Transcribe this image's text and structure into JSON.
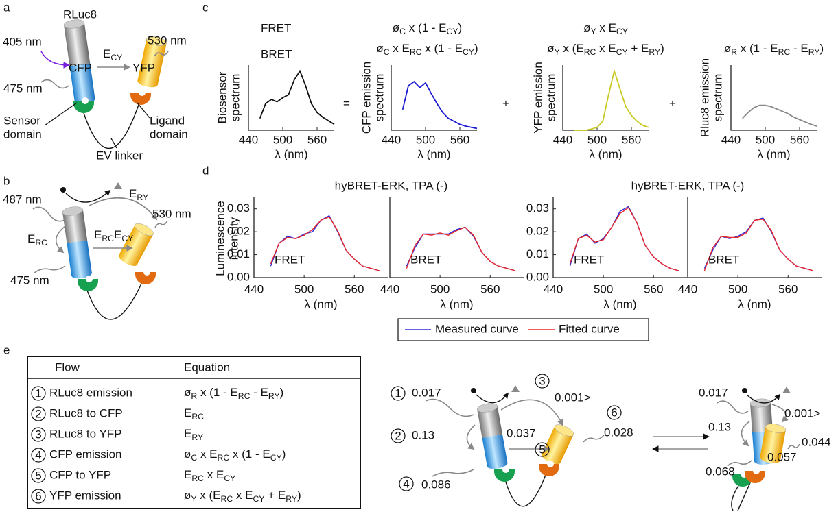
{
  "panels": [
    "a",
    "b",
    "c",
    "d",
    "e"
  ],
  "a": {
    "rluc8": "RLuc8",
    "cfp": "CFP",
    "yfp": "YFP",
    "excitation": "405 nm",
    "cfp_emission": "475 nm",
    "yfp_emission": "530 nm",
    "e_cy": [
      "E",
      "CY"
    ],
    "sensor": [
      "Sensor",
      "domain"
    ],
    "ligand": [
      "Ligand",
      "domain"
    ],
    "linker": "EV linker"
  },
  "b": {
    "rluc8_emission": "487 nm",
    "cfp_emission": "475 nm",
    "yfp_emission": "530 nm",
    "e_ry": [
      "E",
      "RY"
    ],
    "e_rc": [
      "E",
      "RC"
    ],
    "e_rc_cy": [
      "E",
      "RC",
      "E",
      "CY"
    ]
  },
  "c": {
    "fret": "FRET",
    "bret": "BRET",
    "equals": "=",
    "plus": "+",
    "xlabel": "λ (nm)",
    "xlim": [
      440,
      590
    ],
    "ylim": [
      0,
      1.1
    ],
    "xticks": [
      440,
      500,
      560
    ],
    "x": [
      460,
      470,
      480,
      490,
      500,
      510,
      520,
      530,
      540,
      550,
      560,
      570,
      580,
      590
    ],
    "plots": [
      {
        "ylabel": [
          "Biosensor",
          "spectrum"
        ],
        "color": "#111111",
        "values": [
          0.2,
          0.45,
          0.52,
          0.48,
          0.55,
          0.6,
          0.85,
          1.0,
          0.75,
          0.45,
          0.3,
          0.22,
          0.16,
          0.1
        ]
      },
      {
        "ylabel": [
          "CFP emission",
          "spectrum"
        ],
        "color": "#1a1ad0",
        "fret_equation": [
          "ø",
          "C",
          " x  (1 - E",
          "CY",
          ")"
        ],
        "bret_equation": [
          "ø",
          "C",
          " x E",
          "RC",
          " x (1 - E",
          "CY",
          ")"
        ],
        "values": [
          0.35,
          0.75,
          0.82,
          0.72,
          0.8,
          0.62,
          0.45,
          0.3,
          0.2,
          0.15,
          0.1,
          0.07,
          0.05,
          0.03
        ]
      },
      {
        "ylabel": [
          "YFP emission",
          "spectrum"
        ],
        "color": "#c8c820",
        "fret_equation": [
          "ø",
          "Y",
          " x E",
          "CY"
        ],
        "bret_equation": [
          "ø",
          "Y",
          " x (E",
          "RC",
          " x E",
          "CY",
          " + E",
          "RY",
          ")"
        ],
        "values": [
          0,
          0,
          0,
          0.02,
          0.05,
          0.15,
          0.6,
          1.0,
          0.7,
          0.4,
          0.25,
          0.15,
          0.08,
          0.05
        ]
      },
      {
        "ylabel": [
          "Rluc8 emission",
          "spectrum"
        ],
        "color": "#888888",
        "bret_equation": [
          "ø",
          "R",
          " x (1 - E",
          "RC",
          " - E",
          "RY",
          ")"
        ],
        "values": [
          0.2,
          0.3,
          0.38,
          0.42,
          0.42,
          0.4,
          0.36,
          0.32,
          0.28,
          0.22,
          0.18,
          0.14,
          0.1,
          0.07
        ]
      }
    ]
  },
  "d": {
    "titles": [
      "hyBRET-ERK, TPA (-)",
      "hyBRET-ERK, TPA (-)"
    ],
    "ylabel": [
      "Luminescence",
      "intensity"
    ],
    "xlabel": "λ (nm)",
    "xlim": [
      440,
      600
    ],
    "ylim": [
      0,
      0.035
    ],
    "xticks": [
      440,
      500,
      560
    ],
    "yticks": [
      {
        "value": 0,
        "label": "0.00"
      },
      {
        "value": 0.01,
        "label": "0.01"
      },
      {
        "value": 0.02,
        "label": "0.02"
      },
      {
        "value": 0.03,
        "label": "0.03"
      }
    ],
    "x": [
      460,
      470,
      480,
      490,
      500,
      510,
      520,
      530,
      540,
      550,
      560,
      570,
      580,
      590
    ],
    "legend": [
      {
        "name": "Measured curve",
        "color": "#2b2bd6"
      },
      {
        "name": "Fitted curve",
        "color": "#e8262b"
      }
    ],
    "plots": [
      {
        "label": "FRET",
        "series": [
          [
            0.005,
            0.015,
            0.018,
            0.017,
            0.019,
            0.02,
            0.025,
            0.027,
            0.02,
            0.012,
            0.008,
            0.005,
            0.004,
            0.003
          ],
          [
            0.006,
            0.015,
            0.0175,
            0.017,
            0.0185,
            0.021,
            0.025,
            0.0265,
            0.0205,
            0.012,
            0.008,
            0.005,
            0.004,
            0.003
          ]
        ]
      },
      {
        "label": "BRET",
        "series": [
          [
            0.005,
            0.013,
            0.019,
            0.019,
            0.019,
            0.019,
            0.021,
            0.022,
            0.018,
            0.011,
            0.007,
            0.005,
            0.004,
            0.003
          ],
          [
            0.004,
            0.014,
            0.019,
            0.0185,
            0.0195,
            0.0185,
            0.0205,
            0.022,
            0.0185,
            0.011,
            0.007,
            0.005,
            0.004,
            0.003
          ]
        ]
      },
      {
        "label": "FRET",
        "series": [
          [
            0.005,
            0.017,
            0.019,
            0.015,
            0.017,
            0.022,
            0.029,
            0.031,
            0.024,
            0.014,
            0.009,
            0.006,
            0.004,
            0.003
          ],
          [
            0.006,
            0.017,
            0.0185,
            0.0155,
            0.0165,
            0.022,
            0.028,
            0.0305,
            0.024,
            0.014,
            0.009,
            0.006,
            0.004,
            0.003
          ]
        ]
      },
      {
        "label": "BRET",
        "series": [
          [
            0.004,
            0.012,
            0.018,
            0.017,
            0.018,
            0.02,
            0.025,
            0.026,
            0.02,
            0.012,
            0.008,
            0.005,
            0.004,
            0.003
          ],
          [
            0.003,
            0.013,
            0.018,
            0.0175,
            0.0175,
            0.0195,
            0.025,
            0.0255,
            0.0205,
            0.012,
            0.008,
            0.005,
            0.004,
            0.003
          ]
        ]
      }
    ]
  },
  "e": {
    "header": [
      "Flow",
      "Equation"
    ],
    "rows": [
      {
        "num": "1",
        "flow": "RLuc8 emission",
        "equation": [
          "ø",
          "R",
          " x (1 - E",
          "RC",
          " - E",
          "RY",
          ")"
        ]
      },
      {
        "num": "2",
        "flow": "RLuc8 to CFP",
        "equation": [
          "E",
          "RC"
        ]
      },
      {
        "num": "3",
        "flow": "RLuc8 to YFP",
        "equation": [
          "E",
          "RY"
        ]
      },
      {
        "num": "4",
        "flow": "CFP emission",
        "equation": [
          "ø",
          "C",
          " x E",
          "RC",
          " x (1 - E",
          "CY",
          ")"
        ]
      },
      {
        "num": "5",
        "flow": "CFP to YFP",
        "equation": [
          "E",
          "RC",
          " x E",
          "CY"
        ]
      },
      {
        "num": "6",
        "flow": "YFP emission",
        "equation": [
          "ø",
          "Y",
          " x (E",
          "RC",
          " x E",
          "CY",
          " + E",
          "RY",
          ")"
        ]
      }
    ],
    "left": {
      "r_emission": "0.017",
      "r_to_y": "0.001>",
      "r_to_c": "0.13",
      "c_to_y": "0.037",
      "y_emission": "0.028",
      "c_emission": "0.086"
    },
    "right": {
      "r_emission": "0.017",
      "r_to_y": "0.001>",
      "r_to_c": "0.13",
      "c_to_y": "0.057",
      "y_emission": "0.044",
      "c_emission": "0.068"
    }
  }
}
